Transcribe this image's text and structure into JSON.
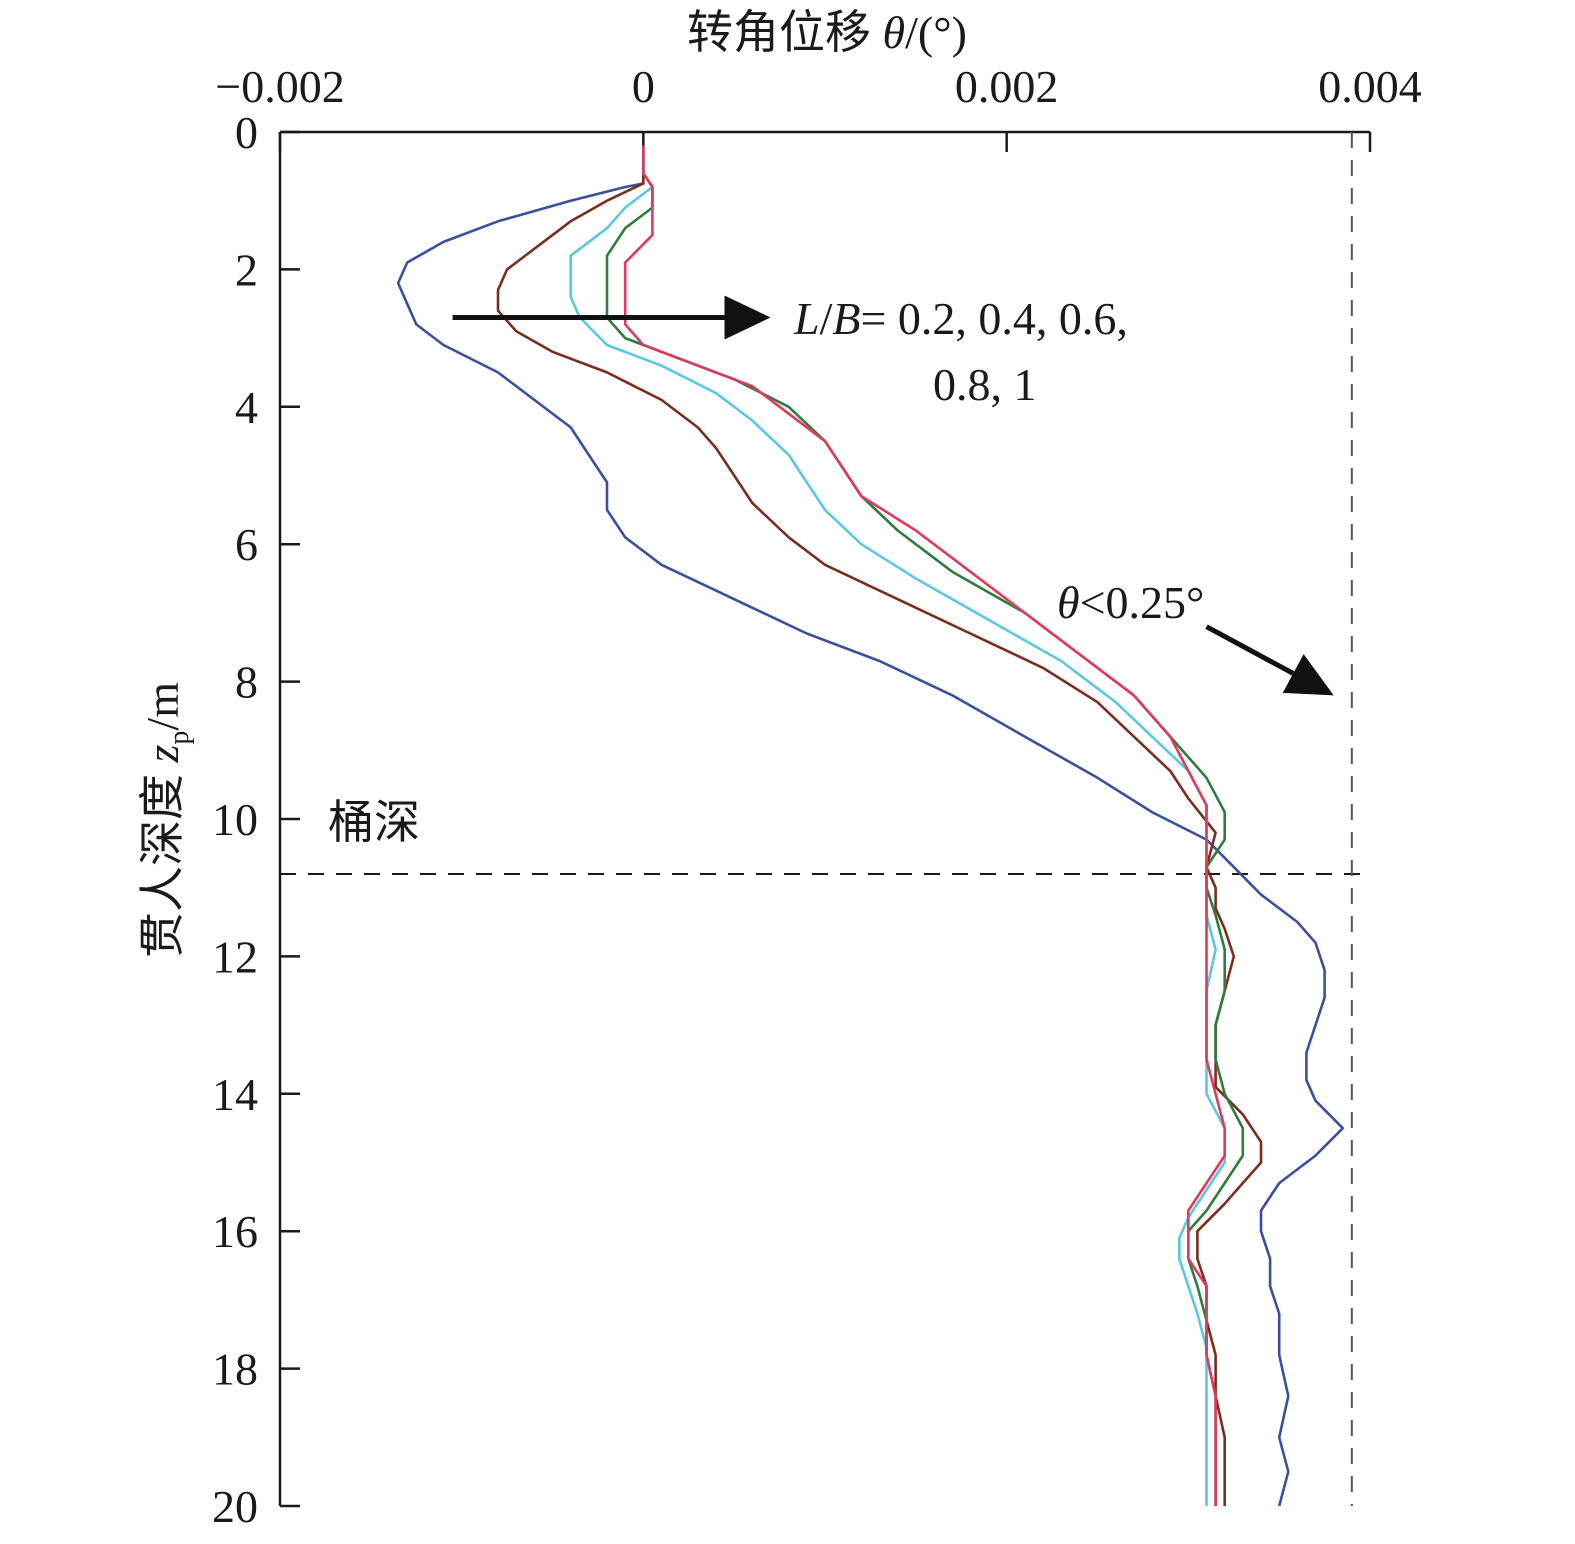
{
  "chart_data": {
    "type": "line",
    "x_axis_title": {
      "prefix": "转角位移 ",
      "symbol": "θ",
      "suffix": "/(°)"
    },
    "y_axis_title": {
      "prefix": "贯人深度 ",
      "symbol": "z",
      "subscript": "p",
      "suffix": "/m"
    },
    "xlim": [
      -0.002,
      0.004
    ],
    "ylim": [
      0,
      20
    ],
    "y_inverted": true,
    "x_axis_position": "top",
    "x_ticks": [
      {
        "value": -0.002,
        "label": "−0.002"
      },
      {
        "value": 0,
        "label": "0"
      },
      {
        "value": 0.002,
        "label": "0.002"
      },
      {
        "value": 0.004,
        "label": "0.004"
      }
    ],
    "y_ticks": [
      {
        "value": 0,
        "label": "0"
      },
      {
        "value": 2,
        "label": "2"
      },
      {
        "value": 4,
        "label": "4"
      },
      {
        "value": 6,
        "label": "6"
      },
      {
        "value": 8,
        "label": "8"
      },
      {
        "value": 10,
        "label": "10"
      },
      {
        "value": 12,
        "label": "12"
      },
      {
        "value": 14,
        "label": "14"
      },
      {
        "value": 16,
        "label": "16"
      },
      {
        "value": 18,
        "label": "18"
      },
      {
        "value": 20,
        "label": "20"
      }
    ],
    "grid": false,
    "reference_lines": [
      {
        "orientation": "horizontal",
        "value": 10.8,
        "style": "dashed",
        "label": "桶深"
      },
      {
        "orientation": "vertical",
        "value": 0.0039,
        "style": "dashed"
      }
    ],
    "annotations": [
      {
        "text_italic_1": "L",
        "text_1": "/",
        "text_italic_2": "B",
        "text_2": "= 0.2, 0.4, 0.6,",
        "line2": "0.8, 1",
        "arrow_from": [
          -0.00105,
          2.7
        ],
        "arrow_to": [
          0.0007,
          2.7
        ]
      },
      {
        "symbol": "θ",
        "text": "<0.25°",
        "arrow_from": [
          0.0031,
          7.2
        ],
        "arrow_to": [
          0.0038,
          8.2
        ]
      }
    ],
    "series": [
      {
        "color": "#3a4fa0",
        "points": [
          [
            0,
            0.2
          ],
          [
            0,
            0.6
          ],
          [
            0.0,
            0.75
          ],
          [
            -0.0001,
            0.8
          ],
          [
            -0.0004,
            1.0
          ],
          [
            -0.0008,
            1.3
          ],
          [
            -0.0011,
            1.6
          ],
          [
            -0.0013,
            1.9
          ],
          [
            -0.00135,
            2.2
          ],
          [
            -0.0013,
            2.5
          ],
          [
            -0.00125,
            2.8
          ],
          [
            -0.0011,
            3.1
          ],
          [
            -0.0008,
            3.5
          ],
          [
            -0.0006,
            3.9
          ],
          [
            -0.0004,
            4.3
          ],
          [
            -0.0003,
            4.7
          ],
          [
            -0.0002,
            5.1
          ],
          [
            -0.0002,
            5.5
          ],
          [
            -0.0001,
            5.9
          ],
          [
            0.0001,
            6.3
          ],
          [
            0.0005,
            6.8
          ],
          [
            0.0009,
            7.3
          ],
          [
            0.0013,
            7.7
          ],
          [
            0.0017,
            8.2
          ],
          [
            0.0021,
            8.8
          ],
          [
            0.0025,
            9.4
          ],
          [
            0.0028,
            9.9
          ],
          [
            0.0031,
            10.3
          ],
          [
            0.00325,
            10.7
          ],
          [
            0.0034,
            11.1
          ],
          [
            0.0036,
            11.5
          ],
          [
            0.0037,
            11.8
          ],
          [
            0.00375,
            12.2
          ],
          [
            0.00375,
            12.6
          ],
          [
            0.0037,
            13.0
          ],
          [
            0.00365,
            13.4
          ],
          [
            0.00365,
            13.8
          ],
          [
            0.0037,
            14.1
          ],
          [
            0.00385,
            14.5
          ],
          [
            0.0037,
            14.9
          ],
          [
            0.0035,
            15.3
          ],
          [
            0.0034,
            15.7
          ],
          [
            0.0034,
            16.0
          ],
          [
            0.00345,
            16.4
          ],
          [
            0.00345,
            16.8
          ],
          [
            0.0035,
            17.2
          ],
          [
            0.0035,
            17.8
          ],
          [
            0.00355,
            18.4
          ],
          [
            0.0035,
            19.0
          ],
          [
            0.00355,
            19.5
          ],
          [
            0.0035,
            20.0
          ]
        ]
      },
      {
        "color": "#7a2e1e",
        "points": [
          [
            0,
            0.2
          ],
          [
            0,
            0.6
          ],
          [
            0.0,
            0.75
          ],
          [
            -0.0002,
            1.0
          ],
          [
            -0.0004,
            1.3
          ],
          [
            -0.0006,
            1.7
          ],
          [
            -0.00075,
            2.0
          ],
          [
            -0.0008,
            2.3
          ],
          [
            -0.0008,
            2.6
          ],
          [
            -0.0007,
            2.9
          ],
          [
            -0.0005,
            3.2
          ],
          [
            -0.0002,
            3.5
          ],
          [
            0.0001,
            3.9
          ],
          [
            0.0003,
            4.3
          ],
          [
            0.0004,
            4.6
          ],
          [
            0.0005,
            5.0
          ],
          [
            0.0006,
            5.4
          ],
          [
            0.0008,
            5.9
          ],
          [
            0.001,
            6.3
          ],
          [
            0.0014,
            6.8
          ],
          [
            0.0018,
            7.3
          ],
          [
            0.0022,
            7.8
          ],
          [
            0.0025,
            8.3
          ],
          [
            0.0027,
            8.8
          ],
          [
            0.0029,
            9.3
          ],
          [
            0.003,
            9.7
          ],
          [
            0.00315,
            10.2
          ],
          [
            0.0031,
            10.7
          ],
          [
            0.00315,
            11.0
          ],
          [
            0.00315,
            11.3
          ],
          [
            0.0032,
            11.6
          ],
          [
            0.00325,
            12.0
          ],
          [
            0.0032,
            12.5
          ],
          [
            0.00315,
            13.0
          ],
          [
            0.00315,
            13.5
          ],
          [
            0.00315,
            13.9
          ],
          [
            0.0033,
            14.3
          ],
          [
            0.0034,
            14.7
          ],
          [
            0.0034,
            15.0
          ],
          [
            0.0033,
            15.3
          ],
          [
            0.0032,
            15.6
          ],
          [
            0.00305,
            16.0
          ],
          [
            0.00305,
            16.4
          ],
          [
            0.0031,
            16.8
          ],
          [
            0.0031,
            17.3
          ],
          [
            0.00315,
            17.8
          ],
          [
            0.00315,
            18.4
          ],
          [
            0.0032,
            19.0
          ],
          [
            0.0032,
            19.5
          ],
          [
            0.0032,
            20.0
          ]
        ]
      },
      {
        "color": "#5ac8e0",
        "points": [
          [
            0,
            0.2
          ],
          [
            0,
            0.6
          ],
          [
            5e-05,
            0.8
          ],
          [
            -0.0001,
            1.1
          ],
          [
            -0.0002,
            1.4
          ],
          [
            -0.0004,
            1.8
          ],
          [
            -0.0004,
            2.1
          ],
          [
            -0.0004,
            2.4
          ],
          [
            -0.00035,
            2.7
          ],
          [
            -0.0002,
            3.1
          ],
          [
            0.0001,
            3.4
          ],
          [
            0.0004,
            3.8
          ],
          [
            0.0006,
            4.2
          ],
          [
            0.0008,
            4.7
          ],
          [
            0.0009,
            5.1
          ],
          [
            0.001,
            5.5
          ],
          [
            0.0012,
            6.0
          ],
          [
            0.0015,
            6.5
          ],
          [
            0.0019,
            7.1
          ],
          [
            0.0023,
            7.7
          ],
          [
            0.0026,
            8.3
          ],
          [
            0.0028,
            8.8
          ],
          [
            0.003,
            9.3
          ],
          [
            0.0031,
            9.8
          ],
          [
            0.0031,
            10.3
          ],
          [
            0.0031,
            10.7
          ],
          [
            0.0031,
            11.0
          ],
          [
            0.0031,
            11.4
          ],
          [
            0.00315,
            11.9
          ],
          [
            0.0031,
            12.5
          ],
          [
            0.0031,
            13.0
          ],
          [
            0.0031,
            13.5
          ],
          [
            0.0031,
            14.0
          ],
          [
            0.0032,
            14.5
          ],
          [
            0.0032,
            15.0
          ],
          [
            0.0031,
            15.4
          ],
          [
            0.003,
            15.8
          ],
          [
            0.00295,
            16.1
          ],
          [
            0.00295,
            16.4
          ],
          [
            0.003,
            16.8
          ],
          [
            0.00305,
            17.2
          ],
          [
            0.0031,
            17.7
          ],
          [
            0.0031,
            18.3
          ],
          [
            0.0031,
            18.9
          ],
          [
            0.0031,
            19.4
          ],
          [
            0.0031,
            20.0
          ]
        ]
      },
      {
        "color": "#2e7d3c",
        "points": [
          [
            0,
            0.2
          ],
          [
            0,
            0.6
          ],
          [
            5e-05,
            0.8
          ],
          [
            5e-05,
            1.1
          ],
          [
            -0.0001,
            1.4
          ],
          [
            -0.0002,
            1.8
          ],
          [
            -0.0002,
            2.1
          ],
          [
            -0.0002,
            2.4
          ],
          [
            -0.0002,
            2.7
          ],
          [
            -0.0001,
            3.0
          ],
          [
            0.0002,
            3.3
          ],
          [
            0.0005,
            3.6
          ],
          [
            0.0008,
            4.0
          ],
          [
            0.001,
            4.5
          ],
          [
            0.0011,
            4.9
          ],
          [
            0.0012,
            5.3
          ],
          [
            0.0014,
            5.8
          ],
          [
            0.0017,
            6.4
          ],
          [
            0.0021,
            7.0
          ],
          [
            0.0024,
            7.6
          ],
          [
            0.0027,
            8.2
          ],
          [
            0.0029,
            8.8
          ],
          [
            0.0031,
            9.4
          ],
          [
            0.0032,
            9.9
          ],
          [
            0.0032,
            10.3
          ],
          [
            0.0031,
            10.7
          ],
          [
            0.0031,
            11.0
          ],
          [
            0.00315,
            11.4
          ],
          [
            0.0032,
            11.9
          ],
          [
            0.0032,
            12.5
          ],
          [
            0.00315,
            13.0
          ],
          [
            0.00315,
            13.5
          ],
          [
            0.0032,
            14.0
          ],
          [
            0.0033,
            14.5
          ],
          [
            0.0033,
            14.9
          ],
          [
            0.0032,
            15.3
          ],
          [
            0.0031,
            15.7
          ],
          [
            0.003,
            16.0
          ],
          [
            0.003,
            16.4
          ],
          [
            0.00305,
            16.8
          ],
          [
            0.0031,
            17.3
          ],
          [
            0.0031,
            17.8
          ],
          [
            0.00315,
            18.4
          ],
          [
            0.00315,
            19.0
          ],
          [
            0.00315,
            19.5
          ],
          [
            0.00315,
            20.0
          ]
        ]
      },
      {
        "color": "#e03a5a",
        "points": [
          [
            0,
            0.2
          ],
          [
            0,
            0.6
          ],
          [
            5e-05,
            0.8
          ],
          [
            5e-05,
            1.1
          ],
          [
            5e-05,
            1.5
          ],
          [
            -0.0001,
            1.9
          ],
          [
            -0.0001,
            2.2
          ],
          [
            -0.0001,
            2.5
          ],
          [
            -0.0001,
            2.8
          ],
          [
            0.0,
            3.1
          ],
          [
            0.0003,
            3.4
          ],
          [
            0.0006,
            3.7
          ],
          [
            0.0008,
            4.1
          ],
          [
            0.001,
            4.5
          ],
          [
            0.0011,
            4.9
          ],
          [
            0.0012,
            5.3
          ],
          [
            0.0015,
            5.8
          ],
          [
            0.0018,
            6.4
          ],
          [
            0.0021,
            7.0
          ],
          [
            0.0024,
            7.6
          ],
          [
            0.0027,
            8.2
          ],
          [
            0.0029,
            8.8
          ],
          [
            0.003,
            9.3
          ],
          [
            0.0031,
            9.8
          ],
          [
            0.0031,
            10.3
          ],
          [
            0.0031,
            10.7
          ],
          [
            0.0031,
            11.0
          ],
          [
            0.0031,
            11.4
          ],
          [
            0.0031,
            11.9
          ],
          [
            0.0031,
            12.5
          ],
          [
            0.0031,
            13.0
          ],
          [
            0.0031,
            13.5
          ],
          [
            0.00315,
            14.0
          ],
          [
            0.0032,
            14.5
          ],
          [
            0.0032,
            14.9
          ],
          [
            0.0031,
            15.3
          ],
          [
            0.003,
            15.7
          ],
          [
            0.003,
            16.0
          ],
          [
            0.003,
            16.4
          ],
          [
            0.0031,
            16.8
          ],
          [
            0.0031,
            17.3
          ],
          [
            0.0031,
            17.8
          ],
          [
            0.00315,
            18.4
          ],
          [
            0.00315,
            19.0
          ],
          [
            0.00315,
            19.5
          ],
          [
            0.00315,
            20.0
          ]
        ]
      }
    ]
  }
}
